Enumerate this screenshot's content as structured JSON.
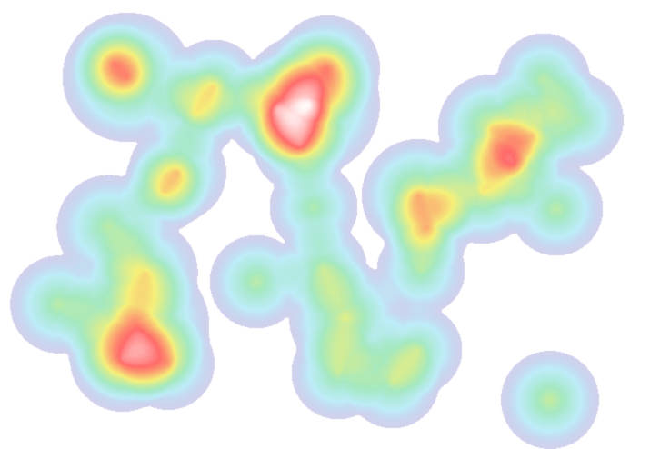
{
  "heatmap": {
    "gradient": [
      "#5a4fb8",
      "#7ad8f0",
      "#82e0a8",
      "#f6f07a",
      "#ff6a6a",
      "#ffffff"
    ],
    "point_count": 38
  }
}
